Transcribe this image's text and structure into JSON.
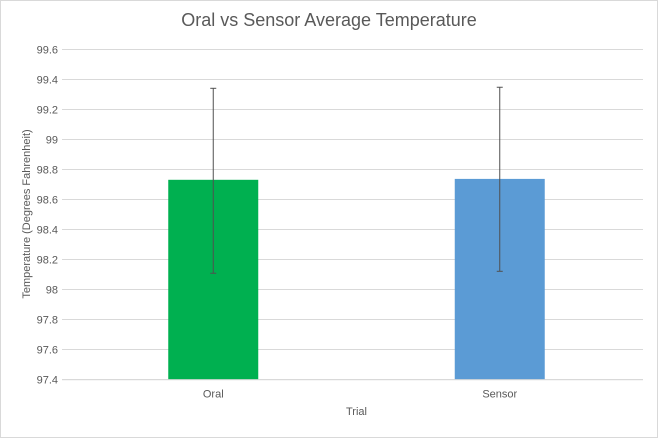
{
  "chart_data": {
    "type": "bar",
    "title": "Oral vs Sensor Average Temperature",
    "xlabel": "Trial",
    "ylabel": "Temperature  (Degrees  Fahrenheit)",
    "categories": [
      "Oral",
      "Sensor"
    ],
    "values": [
      98.73,
      98.736
    ],
    "error_bars": [
      {
        "upper": 99.34,
        "lower": 98.107
      },
      {
        "upper": 99.347,
        "lower": 98.12
      }
    ],
    "colors": [
      "#00b050",
      "#5b9bd5"
    ],
    "ylim": [
      97.4,
      99.6
    ],
    "yticks": [
      "97.4",
      "97.6",
      "97.8",
      "98",
      "98.2",
      "98.4",
      "98.6",
      "98.8",
      "99",
      "99.2",
      "99.4",
      "99.6"
    ],
    "grid": true,
    "legend": "none"
  }
}
